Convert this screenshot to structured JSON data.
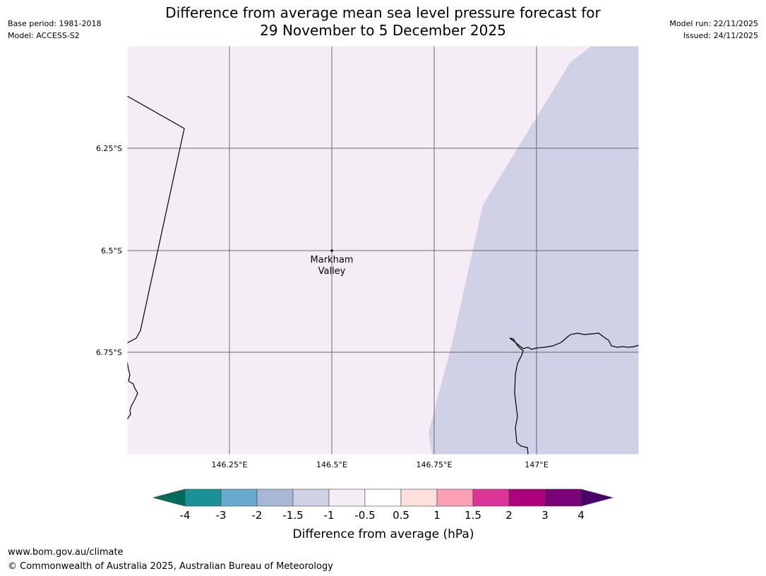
{
  "header": {
    "base_period": "Base period: 1981-2018",
    "model": "Model: ACCESS-S2",
    "title_line1": "Difference from average mean sea level pressure forecast for",
    "title_line2": "29 November to 5 December 2025",
    "model_run": "Model run: 22/11/2025",
    "issued": "Issued: 24/11/2025"
  },
  "map": {
    "lat_labels": [
      "6.25°S",
      "6.5°S",
      "6.75°S"
    ],
    "lon_labels": [
      "146.25°E",
      "146.5°E",
      "146.75°E",
      "147°E"
    ],
    "place": {
      "name_line1": "Markham",
      "name_line2": "Valley",
      "lat": "6.5°S",
      "lon": "146.5°E"
    },
    "colors": {
      "background_fill": "#f4edf6",
      "negative_fill": "#d0d1e6",
      "gridline": "#555555",
      "coastline": "#000000"
    }
  },
  "colorbar": {
    "title": "Difference from average (hPa)",
    "tick_labels": [
      "-4",
      "-3",
      "-2",
      "-1.5",
      "-1",
      "-0.5",
      "0.5",
      "1",
      "1.5",
      "2",
      "3",
      "4"
    ],
    "colors": [
      "#1a9196",
      "#67a9cf",
      "#a6b8d3",
      "#d0d1e6",
      "#f4edf6",
      "#ffffff",
      "#fde0dd",
      "#fa9fb5",
      "#dd3497",
      "#ae017e",
      "#7a0177"
    ],
    "low_extend_color": "#016c59",
    "high_extend_color": "#49006a"
  },
  "footer": {
    "url": "www.bom.gov.au/climate",
    "copyright": "© Commonwealth of Australia 2025, Australian Bureau of Meteorology"
  }
}
